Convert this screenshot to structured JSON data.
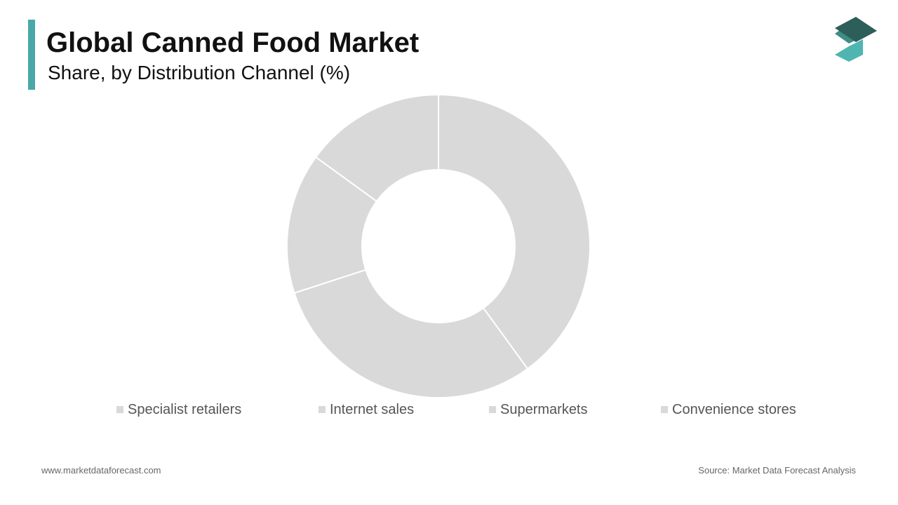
{
  "chart_data": {
    "type": "donut",
    "title": "Global Canned Food Market",
    "subtitle": "Share, by Distribution Channel (%)",
    "categories": [
      "Specialist retailers",
      "Internet sales",
      "Supermarkets",
      "Convenience stores"
    ],
    "values": [
      40,
      30,
      15,
      15
    ],
    "colors": [
      "#d9d9d9",
      "#d9d9d9",
      "#d9d9d9",
      "#d9d9d9"
    ]
  },
  "footer": {
    "website": "www.marketdataforecast.com",
    "source": "Source: Market Data Forecast Analysis"
  }
}
